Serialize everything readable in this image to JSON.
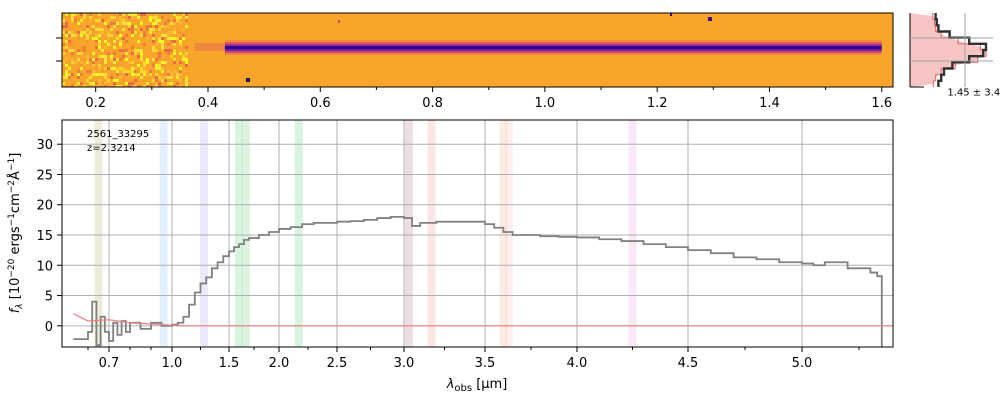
{
  "chart_data": [
    {
      "type": "heatmap",
      "panel": "2D spectrum",
      "x_ticks": [
        "0.2",
        "0.4",
        "0.6",
        "0.8",
        "1.0",
        "1.2",
        "1.4",
        "1.6"
      ],
      "x_tick_values": [
        0.2,
        0.4,
        0.6,
        0.8,
        1.0,
        1.2,
        1.4,
        1.6
      ],
      "xlim": [
        0.14,
        1.62
      ],
      "colormap": "plasma",
      "trace_start": 0.43,
      "trace_end": 1.6
    },
    {
      "type": "line",
      "panel": "spatial profile",
      "annotation": "1.45 ± 3.41",
      "profile_model": [
        0.05,
        0.08,
        0.1,
        0.2,
        0.5,
        0.9,
        1.0,
        0.85,
        0.45,
        0.2,
        0.1,
        0.06
      ],
      "profile_data": [
        0.1,
        0.12,
        0.15,
        0.35,
        0.7,
        1.0,
        0.95,
        0.7,
        0.4,
        0.25,
        0.2,
        0.15
      ]
    },
    {
      "type": "line",
      "panel": "1D spectrum",
      "annotation_id": "2561_33295",
      "annotation_z": "z=2.3214",
      "xlabel_main": "λ",
      "xlabel_sub": "obs",
      "xlabel_unit": " [μm]",
      "ylabel": "f_λ [10^-20 ergs^-1 cm^-2 Å^-1]",
      "x_ticks": [
        "0.7",
        "1.0",
        "1.5",
        "2.0",
        "2.5",
        "3.0",
        "3.5",
        "4.0",
        "4.5",
        "5.0"
      ],
      "x_tick_values": [
        0.7,
        1.0,
        1.5,
        2.0,
        2.5,
        3.0,
        3.5,
        4.0,
        4.5,
        5.0
      ],
      "y_ticks": [
        "0",
        "5",
        "10",
        "15",
        "20",
        "25",
        "30"
      ],
      "y_tick_values": [
        0,
        5,
        10,
        15,
        20,
        25,
        30
      ],
      "ylim": [
        -3.5,
        34
      ],
      "xlim": [
        0.5,
        5.4
      ],
      "grid": true,
      "series": [
        {
          "color": "#808080",
          "x": [
            0.53,
            0.6,
            0.62,
            0.64,
            0.66,
            0.68,
            0.7,
            0.72,
            0.74,
            0.76,
            0.78,
            0.8,
            0.85,
            0.9,
            0.95,
            1.0,
            1.05,
            1.1,
            1.15,
            1.2,
            1.25,
            1.3,
            1.35,
            1.4,
            1.45,
            1.5,
            1.55,
            1.6,
            1.65,
            1.7,
            1.8,
            1.9,
            2.0,
            2.1,
            2.2,
            2.3,
            2.4,
            2.5,
            2.6,
            2.7,
            2.8,
            2.9,
            3.0,
            3.05,
            3.1,
            3.2,
            3.3,
            3.4,
            3.5,
            3.55,
            3.6,
            3.65,
            3.7,
            3.8,
            3.9,
            4.0,
            4.1,
            4.2,
            4.3,
            4.4,
            4.5,
            4.6,
            4.7,
            4.8,
            4.9,
            5.0,
            5.05,
            5.1,
            5.2,
            5.3,
            5.33,
            5.35
          ],
          "y": [
            -2.2,
            -1.0,
            4.0,
            -3.2,
            1.5,
            -1.0,
            -2.5,
            0.5,
            -1.5,
            0.8,
            -1.0,
            0.5,
            -0.5,
            0.5,
            0.0,
            0.2,
            0.5,
            1.5,
            3.5,
            5.5,
            7.0,
            8.0,
            9.5,
            10.5,
            11.5,
            12.3,
            13.0,
            13.5,
            14.2,
            14.5,
            15.0,
            15.5,
            16.0,
            16.3,
            16.8,
            17.0,
            17.0,
            17.2,
            17.3,
            17.5,
            17.8,
            18.0,
            17.8,
            16.5,
            17.0,
            17.2,
            17.2,
            17.2,
            16.8,
            16.2,
            15.5,
            15.0,
            15.0,
            14.8,
            14.7,
            14.6,
            14.3,
            14.0,
            13.5,
            13.0,
            12.5,
            12.0,
            11.3,
            11.0,
            10.5,
            10.3,
            10.0,
            10.5,
            9.5,
            8.8,
            8.2,
            -3.5
          ]
        },
        {
          "color": "#f08080",
          "x": [
            0.53,
            0.6,
            0.7,
            0.8,
            0.9,
            1.0,
            1.1,
            1.3,
            2.0,
            3.0,
            4.0,
            5.0,
            5.4
          ],
          "y": [
            2.0,
            0.8,
            1.0,
            0.5,
            0.3,
            0.1,
            0.0,
            0.0,
            0.0,
            0.0,
            0.0,
            0.0,
            0.0
          ]
        }
      ],
      "bands": [
        {
          "x": 0.65,
          "color": "#c8c890"
        },
        {
          "x": 0.96,
          "color": "#b0d8ff"
        },
        {
          "x": 1.28,
          "color": "#c8c0f0"
        },
        {
          "x": 1.6,
          "color": "#90e0a0"
        },
        {
          "x": 1.67,
          "color": "#a0e0b0"
        },
        {
          "x": 2.17,
          "color": "#90e0a0"
        },
        {
          "x": 3.03,
          "color": "#c8a0a8"
        },
        {
          "x": 3.17,
          "color": "#f0b8b8"
        },
        {
          "x": 3.6,
          "color": "#f8c8b0"
        },
        {
          "x": 3.63,
          "color": "#f8d0c8"
        },
        {
          "x": 4.25,
          "color": "#f0c0e0"
        }
      ]
    }
  ]
}
